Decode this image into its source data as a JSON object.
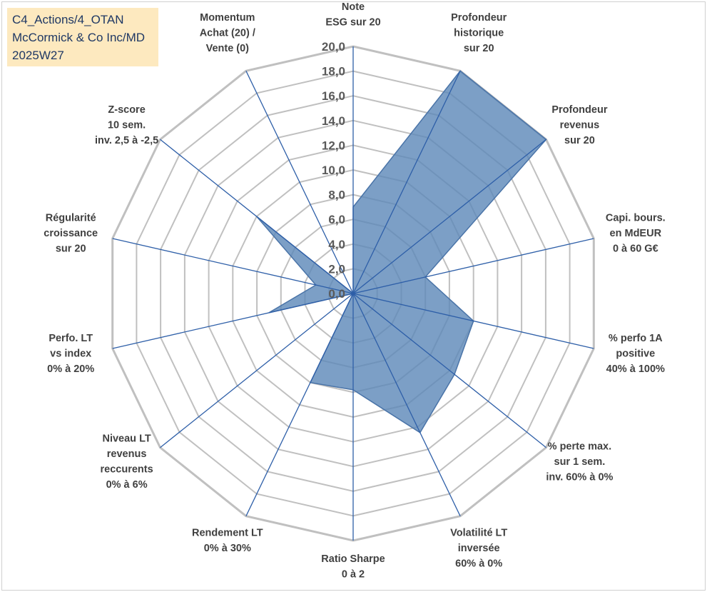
{
  "info_box": {
    "line1": "C4_Actions/4_OTAN",
    "line2": "McCormick & Co Inc/MD",
    "line3": "2025W27"
  },
  "colors": {
    "fill": "#5b87b8",
    "stroke": "#4a74a8",
    "spoke": "#2e5fa8",
    "grid": "#c0c0c0",
    "info_bg": "#fde9bf"
  },
  "chart_data": {
    "type": "radar",
    "title": "",
    "rmin": 0,
    "rmax": 20,
    "ticks": [
      "0,0",
      "2,0",
      "4,0",
      "6,0",
      "8,0",
      "10,0",
      "12,0",
      "14,0",
      "16,0",
      "18,0",
      "20,0"
    ],
    "categories": [
      [
        "Note",
        "ESG sur 20"
      ],
      [
        "Profondeur",
        "historique",
        "sur 20"
      ],
      [
        "Profondeur",
        "revenus",
        "sur 20"
      ],
      [
        "Capi. bours.",
        "en MdEUR",
        "0 à 60 G€"
      ],
      [
        "% perfo 1A",
        "positive",
        "40% à 100%"
      ],
      [
        "% perte max.",
        "sur 1 sem.",
        "inv. 60% à 0%"
      ],
      [
        "Volatilité LT",
        "inversée",
        "60% à 0%"
      ],
      [
        "Ratio Sharpe",
        "0 à 2"
      ],
      [
        "Rendement LT",
        "0% à 30%"
      ],
      [
        "Niveau LT",
        "revenus",
        "reccurents",
        "0% à 6%"
      ],
      [
        "Perfo. LT",
        "vs index",
        "0% à 20%"
      ],
      [
        "Régularité",
        "croissance",
        "sur 20"
      ],
      [
        "Z-score",
        "10 sem.",
        "inv. 2,5 à -2,5"
      ],
      [
        "Momentum",
        "Achat (20) /",
        "Vente (0)"
      ]
    ],
    "series": [
      {
        "values": [
          7.0,
          20.0,
          20.0,
          6.0,
          10.0,
          10.5,
          12.5,
          7.8,
          8.0,
          0.0,
          7.0,
          3.1,
          10.0,
          0.0
        ]
      }
    ]
  }
}
